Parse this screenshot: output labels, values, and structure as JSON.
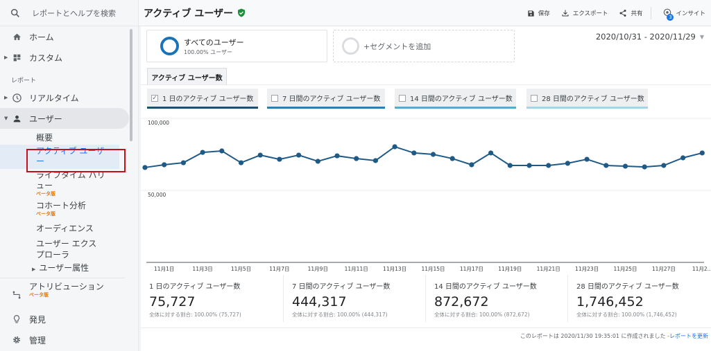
{
  "sidebar": {
    "search_placeholder": "レポートとヘルプを検索",
    "items": [
      {
        "label": "ホーム",
        "icon": "home-icon"
      },
      {
        "label": "カスタム",
        "icon": "dashboard-icon"
      }
    ],
    "section_label": "レポート",
    "report_items": [
      {
        "label": "リアルタイム",
        "icon": "clock-icon"
      },
      {
        "label": "ユーザー",
        "icon": "person-icon"
      }
    ],
    "user_sub": [
      {
        "label": "概要"
      },
      {
        "label": "アクティブ ユーザー"
      },
      {
        "label": "ライフタイム バリュー",
        "badge": "ベータ版"
      },
      {
        "label": "コホート分析",
        "badge": "ベータ版"
      },
      {
        "label": "オーディエンス"
      },
      {
        "label": "ユーザー エクスプローラ"
      },
      {
        "label": "ユーザー属性"
      }
    ],
    "bottom_items": [
      {
        "label": "アトリビューション",
        "badge": "ベータ版",
        "icon": "attribution-icon"
      },
      {
        "label": "発見",
        "icon": "lightbulb-icon"
      },
      {
        "label": "管理",
        "icon": "gear-icon"
      }
    ]
  },
  "header": {
    "title": "アクティブ ユーザー",
    "actions": {
      "save": "保存",
      "export": "エクスポート",
      "share": "共有",
      "insights": "インサイト",
      "insights_badge": "3"
    }
  },
  "segments": {
    "all_users_title": "すべてのユーザー",
    "all_users_sub": "100.00% ユーザー",
    "add_segment": "+セグメントを追加"
  },
  "date_range": "2020/10/31 - 2020/11/29",
  "tab_label": "アクティブ ユーザー数",
  "metric_toggles": [
    {
      "label": "1 日のアクティブ ユーザー数",
      "checked": true,
      "color": "#1f4e6b"
    },
    {
      "label": "7 日間のアクティブ ユーザー数",
      "checked": false,
      "color": "#2a7fae"
    },
    {
      "label": "14 日間のアクティブ ユーザー数",
      "checked": false,
      "color": "#5aa9cc"
    },
    {
      "label": "28 日間のアクティブ ユーザー数",
      "checked": false,
      "color": "#a8d2e6"
    }
  ],
  "chart_data": {
    "type": "line",
    "title": "",
    "xlabel": "",
    "ylabel": "",
    "ylim": [
      0,
      100000
    ],
    "y_ticks": [
      "100,000",
      "50,000"
    ],
    "x_tick_labels": [
      "11月1日",
      "11月3日",
      "11月5日",
      "11月7日",
      "11月9日",
      "11月11日",
      "11月13日",
      "11月15日",
      "11月17日",
      "11月19日",
      "11月21日",
      "11月23日",
      "11月25日",
      "11月27日",
      "11月2..."
    ],
    "x": [
      "10/31",
      "11/1",
      "11/2",
      "11/3",
      "11/4",
      "11/5",
      "11/6",
      "11/7",
      "11/8",
      "11/9",
      "11/10",
      "11/11",
      "11/12",
      "11/13",
      "11/14",
      "11/15",
      "11/16",
      "11/17",
      "11/18",
      "11/19",
      "11/20",
      "11/21",
      "11/22",
      "11/23",
      "11/24",
      "11/25",
      "11/26",
      "11/27",
      "11/28",
      "11/29"
    ],
    "series": [
      {
        "name": "1 日のアクティブ ユーザー数",
        "color": "#1f5a87",
        "values": [
          65900,
          67800,
          69200,
          76400,
          77400,
          69200,
          74500,
          71600,
          74500,
          70200,
          74000,
          72100,
          70700,
          80300,
          76000,
          75000,
          72100,
          67800,
          76000,
          67300,
          67300,
          67300,
          68800,
          71600,
          67300,
          66800,
          66300,
          67300,
          72600,
          76000
        ]
      }
    ],
    "grid": true,
    "legend_position": "top"
  },
  "kpis": [
    {
      "label": "1 日のアクティブ ユーザー数",
      "value": "75,727",
      "sub": "全体に対する割合: 100.00% (75,727)"
    },
    {
      "label": "7 日間のアクティブ ユーザー数",
      "value": "444,317",
      "sub": "全体に対する割合: 100.00% (444,317)"
    },
    {
      "label": "14 日間のアクティブ ユーザー数",
      "value": "872,672",
      "sub": "全体に対する割合: 100.00% (872,672)"
    },
    {
      "label": "28 日間のアクティブ ユーザー数",
      "value": "1,746,452",
      "sub": "全体に対する割合: 100.00% (1,746,452)"
    }
  ],
  "footer": {
    "text": "このレポートは 2020/11/30 19:35:01 に作成されました - ",
    "refresh_link": "レポートを更新"
  }
}
